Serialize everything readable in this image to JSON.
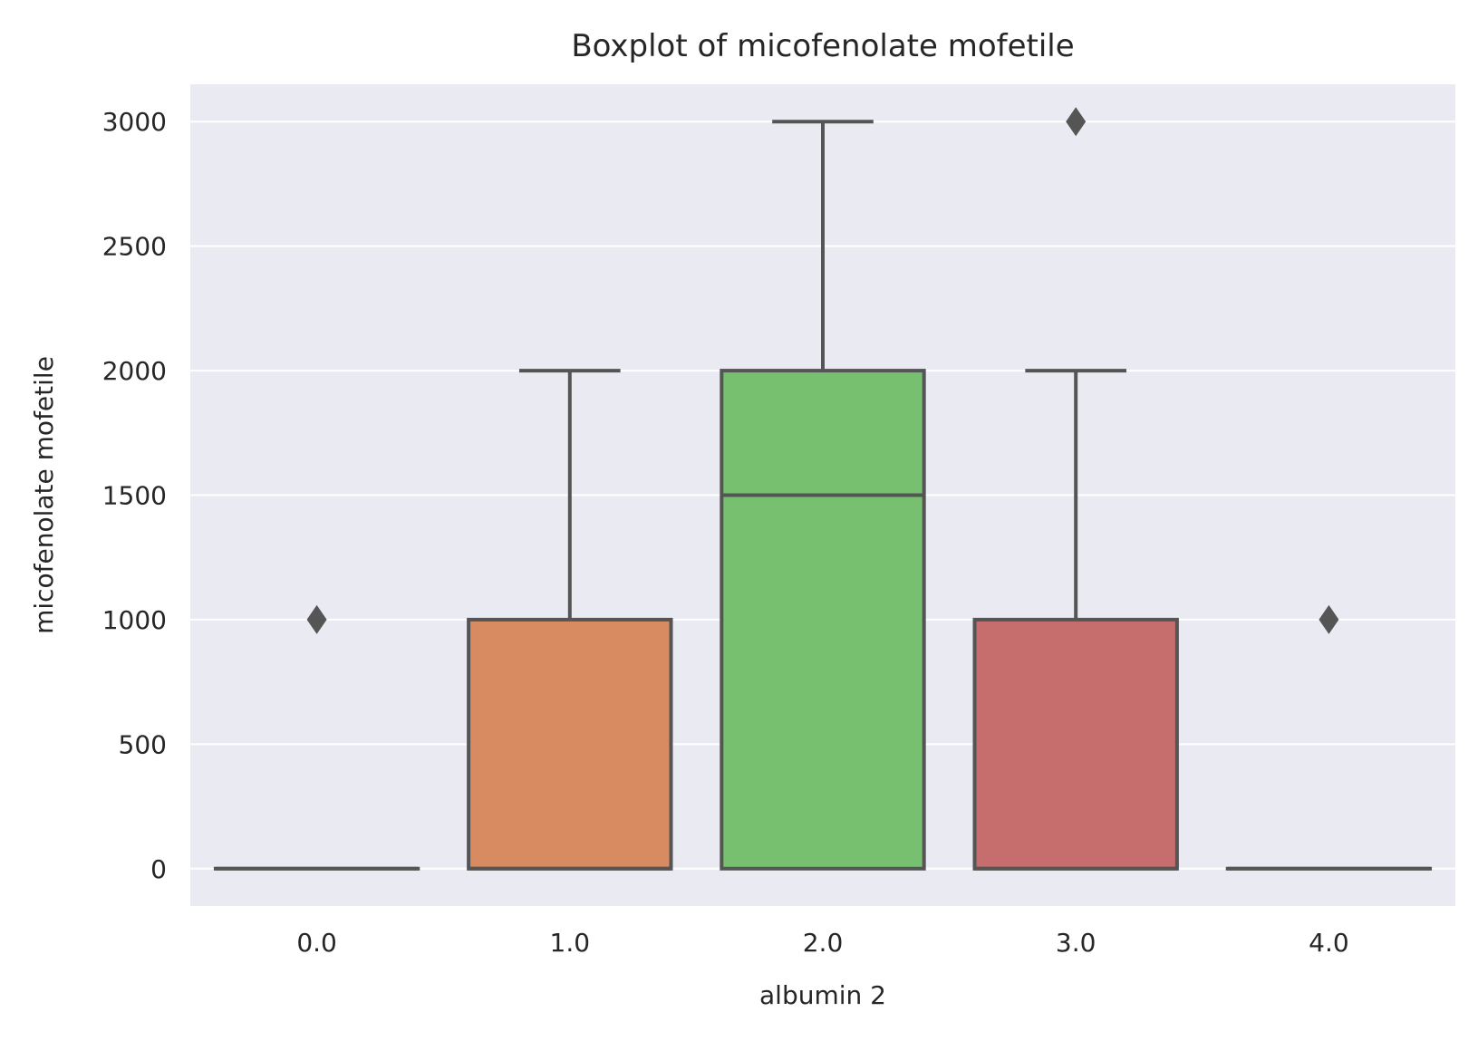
{
  "chart_data": {
    "type": "box",
    "title": "Boxplot of micofenolate mofetile",
    "xlabel": "albumin 2",
    "ylabel": "micofenolate mofetile",
    "categories": [
      "0.0",
      "1.0",
      "2.0",
      "3.0",
      "4.0"
    ],
    "ylim": [
      -150,
      3150
    ],
    "yticks": [
      0,
      500,
      1000,
      1500,
      2000,
      2500,
      3000
    ],
    "grid": true,
    "boxes": [
      {
        "category": "0.0",
        "whisker_low": 0,
        "q1": 0,
        "median": 0,
        "q3": 0,
        "whisker_high": 0,
        "outliers": [
          1000
        ],
        "color": "#5875a4"
      },
      {
        "category": "1.0",
        "whisker_low": 0,
        "q1": 0,
        "median": 0,
        "q3": 1000,
        "whisker_high": 2000,
        "outliers": [],
        "color": "#d88a60"
      },
      {
        "category": "2.0",
        "whisker_low": 0,
        "q1": 0,
        "median": 1500,
        "q3": 2000,
        "whisker_high": 3000,
        "outliers": [],
        "color": "#76c070"
      },
      {
        "category": "3.0",
        "whisker_low": 0,
        "q1": 0,
        "median": 0,
        "q3": 1000,
        "whisker_high": 2000,
        "outliers": [
          3000
        ],
        "color": "#c66d6d"
      },
      {
        "category": "4.0",
        "whisker_low": 0,
        "q1": 0,
        "median": 0,
        "q3": 0,
        "whisker_high": 0,
        "outliers": [
          1000
        ],
        "color": "#8c7bb3"
      }
    ]
  },
  "colors": {
    "plot_background": "#eaeaf2",
    "grid": "#ffffff",
    "box_edge": "#555555",
    "text": "#262626"
  }
}
